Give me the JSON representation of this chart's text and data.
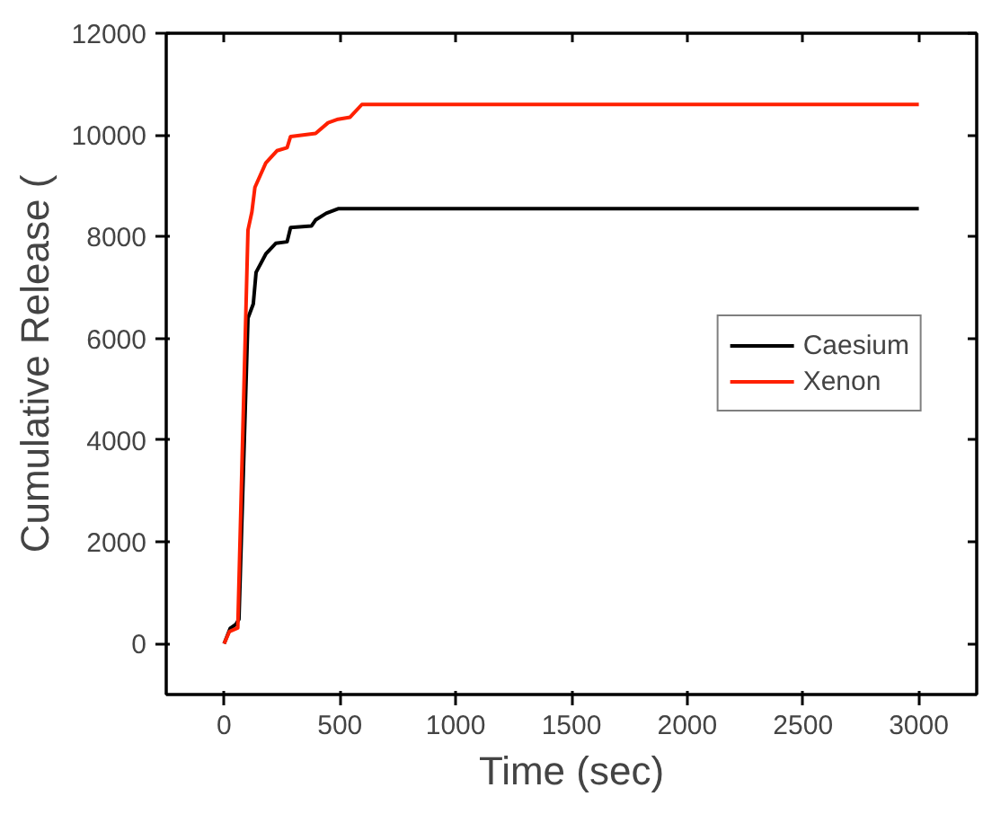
{
  "chart_data": {
    "type": "line",
    "xlabel": "Time (sec)",
    "ylabel": "Cumulative Release (",
    "x": [
      0,
      26,
      51,
      64,
      103,
      126,
      138,
      180,
      223,
      272,
      287,
      377,
      395,
      441,
      492,
      3000
    ],
    "series": [
      {
        "name": "Caesium",
        "color": "#000000",
        "values": [
          0,
          300,
          380,
          480,
          6400,
          6680,
          7300,
          7660,
          7870,
          7900,
          8180,
          8210,
          8330,
          8460,
          8550,
          8550
        ]
      },
      {
        "name": "Xenon",
        "color": "#ff2000",
        "x": [
          0,
          23,
          59,
          103,
          120,
          133,
          180,
          228,
          272,
          287,
          395,
          449,
          492,
          544,
          595,
          3000
        ],
        "values": [
          0,
          240,
          310,
          8130,
          8490,
          8970,
          9450,
          9690,
          9750,
          9970,
          10030,
          10240,
          10310,
          10350,
          10600,
          10600
        ]
      }
    ],
    "xlim": [
      -250,
      3250
    ],
    "xticks": [
      0,
      500,
      1000,
      1500,
      2000,
      2500,
      3000
    ],
    "ylim": [
      -1000,
      12000
    ],
    "yticks": [
      0,
      2000,
      4000,
      6000,
      8000,
      10000,
      12000
    ],
    "grid": false,
    "legend": "right",
    "marker": "none",
    "line_style": "solid"
  }
}
